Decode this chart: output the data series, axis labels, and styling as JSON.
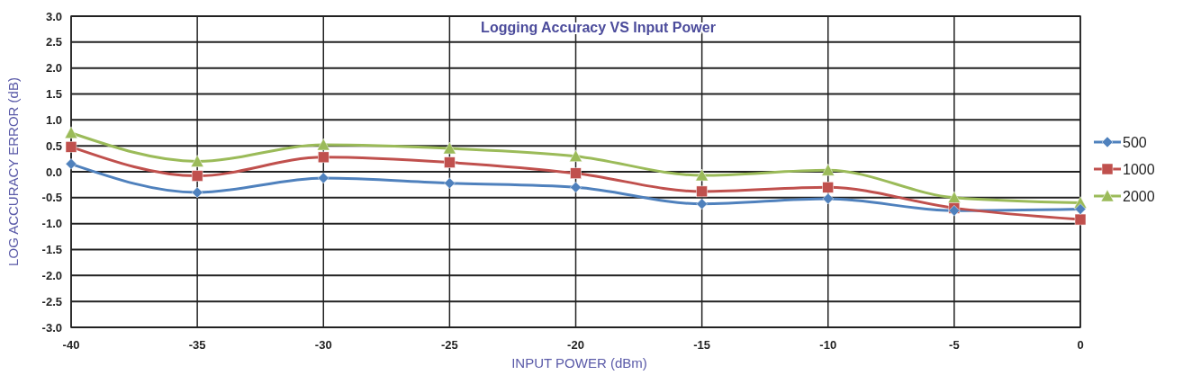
{
  "chart_data": {
    "type": "line",
    "title": "Logging Accuracy VS Input Power",
    "xlabel": "INPUT POWER (dBm)",
    "ylabel": "LOG ACCURACY ERROR (dB)",
    "x": [
      -40,
      -35,
      -30,
      -25,
      -20,
      -15,
      -10,
      -5,
      0
    ],
    "series": [
      {
        "name": "500",
        "color": "#4f81bd",
        "marker": "diamond",
        "values": [
          0.15,
          -0.4,
          -0.12,
          -0.22,
          -0.3,
          -0.62,
          -0.52,
          -0.75,
          -0.72
        ]
      },
      {
        "name": "1000",
        "color": "#c0504d",
        "marker": "square",
        "values": [
          0.48,
          -0.08,
          0.28,
          0.18,
          -0.03,
          -0.38,
          -0.3,
          -0.7,
          -0.92
        ]
      },
      {
        "name": "2000",
        "color": "#9bbb59",
        "marker": "triangle",
        "values": [
          0.75,
          0.2,
          0.52,
          0.45,
          0.3,
          -0.07,
          0.03,
          -0.5,
          -0.6
        ]
      }
    ],
    "xlim": [
      -40,
      0
    ],
    "xticks": [
      -40,
      -35,
      -30,
      -25,
      -20,
      -15,
      -10,
      -5,
      0
    ],
    "ylim": [
      -3,
      3
    ],
    "yticks": [
      {
        "value": -3,
        "label": "-3.0"
      },
      {
        "value": -2.5,
        "label": "-2.5"
      },
      {
        "value": -2,
        "label": "-2.0"
      },
      {
        "value": -1.5,
        "label": "-1.5"
      },
      {
        "value": -1,
        "label": "-1.0"
      },
      {
        "value": -0.5,
        "label": "-0.5"
      },
      {
        "value": 0,
        "label": "0.0"
      },
      {
        "value": 0.5,
        "label": "0.5"
      },
      {
        "value": 1,
        "label": "1.0"
      },
      {
        "value": 1.5,
        "label": "1.5"
      },
      {
        "value": 2,
        "label": "2.0"
      },
      {
        "value": 2.5,
        "label": "2.5"
      },
      {
        "value": 3,
        "label": "3.0"
      }
    ],
    "grid": true,
    "legend": "right"
  }
}
